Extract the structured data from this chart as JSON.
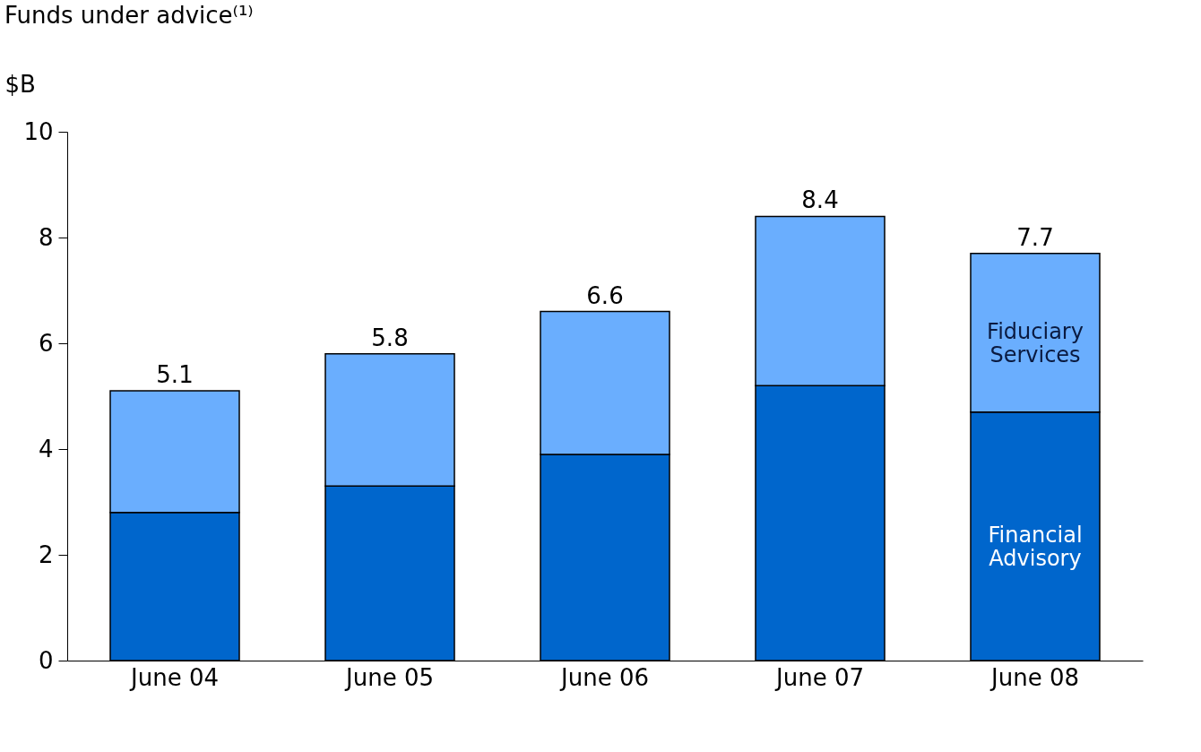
{
  "chart_data": {
    "type": "bar",
    "title": "Funds under advice⁽¹⁾",
    "ylabel": "$B",
    "categories": [
      "June 04",
      "June 05",
      "June 06",
      "June 07",
      "June 08"
    ],
    "stacked": true,
    "series": [
      {
        "name": "Financial Advisory",
        "color": "#0066cc",
        "values": [
          2.8,
          3.3,
          3.9,
          5.2,
          4.7
        ]
      },
      {
        "name": "Fiduciary Services",
        "color": "#6aaefe",
        "values": [
          2.3,
          2.5,
          2.7,
          3.2,
          3.0
        ]
      }
    ],
    "totals": [
      "5.1",
      "5.8",
      "6.6",
      "8.4",
      "7.7"
    ],
    "ylim": [
      0,
      10
    ],
    "yticks": [
      0,
      2,
      4,
      6,
      8,
      10
    ],
    "grid": false
  }
}
